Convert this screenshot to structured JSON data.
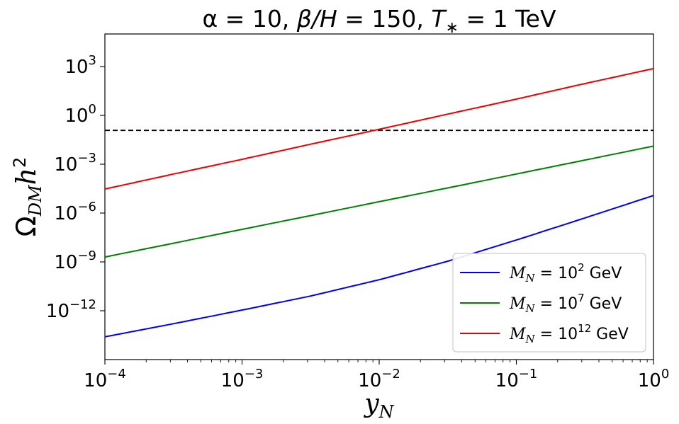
{
  "chart_data": {
    "type": "line",
    "title_parts": [
      "α = 10, ",
      "β/H",
      " = 150, ",
      "T",
      "∗",
      " = 1 TeV"
    ],
    "xlabel": {
      "base": "y",
      "sub": "N"
    },
    "ylabel": {
      "base": "Ω",
      "sub": "DM",
      "tail": "h",
      "sup": "2"
    },
    "x_scale": "log",
    "y_scale": "log",
    "xlim": [
      0.0001,
      1
    ],
    "ylim": [
      1e-15,
      100000.0
    ],
    "x_ticks": [
      {
        "value": 0.0001,
        "base": "10",
        "exp": "−4"
      },
      {
        "value": 0.001,
        "base": "10",
        "exp": "−3"
      },
      {
        "value": 0.01,
        "base": "10",
        "exp": "−2"
      },
      {
        "value": 0.1,
        "base": "10",
        "exp": "−1"
      },
      {
        "value": 1,
        "base": "10",
        "exp": "0"
      }
    ],
    "y_ticks": [
      {
        "value": 1000.0,
        "base": "10",
        "exp": "3"
      },
      {
        "value": 1,
        "base": "10",
        "exp": "0"
      },
      {
        "value": 0.001,
        "base": "10",
        "exp": "−3"
      },
      {
        "value": 1e-06,
        "base": "10",
        "exp": "−6"
      },
      {
        "value": 1e-09,
        "base": "10",
        "exp": "−9"
      },
      {
        "value": 1e-12,
        "base": "10",
        "exp": "−12"
      }
    ],
    "grid": false,
    "legend_position": "lower-right",
    "reference_line": {
      "y": 0.12,
      "style": "dashed",
      "color": "#000000"
    },
    "series": [
      {
        "name": "M_N = 10^2 GeV",
        "label": {
          "pre": "M",
          "sub": "N",
          "mid": " = 10",
          "sup": "2",
          "post": " GeV"
        },
        "color": "#0000ee",
        "x": [
          0.0001,
          0.000316,
          0.001,
          0.00316,
          0.01,
          0.0316,
          0.1,
          0.316,
          1
        ],
        "y": [
          2.5e-14,
          1.6e-13,
          1.1e-12,
          8e-12,
          8e-11,
          1.1e-09,
          2.2e-08,
          5e-07,
          1.2e-05
        ]
      },
      {
        "name": "M_N = 10^7 GeV",
        "label": {
          "pre": "M",
          "sub": "N",
          "mid": " = 10",
          "sup": "7",
          "post": " GeV"
        },
        "color": "#008000",
        "x": [
          0.0001,
          0.000316,
          0.001,
          0.00316,
          0.01,
          0.0316,
          0.1,
          0.316,
          1
        ],
        "y": [
          2e-09,
          1.4e-08,
          1e-07,
          7e-07,
          5e-06,
          3.5e-05,
          0.00025,
          0.0018,
          0.013
        ]
      },
      {
        "name": "M_N = 10^12 GeV",
        "label": {
          "pre": "M",
          "sub": "N",
          "mid": " = 10",
          "sup": "12",
          "post": " GeV"
        },
        "color": "#ee0000",
        "x": [
          0.0001,
          0.000316,
          0.001,
          0.00316,
          0.01,
          0.0316,
          0.1,
          0.316,
          1
        ],
        "y": [
          3e-05,
          0.00025,
          0.002,
          0.017,
          0.14,
          1.2,
          10,
          90,
          750
        ]
      }
    ]
  }
}
